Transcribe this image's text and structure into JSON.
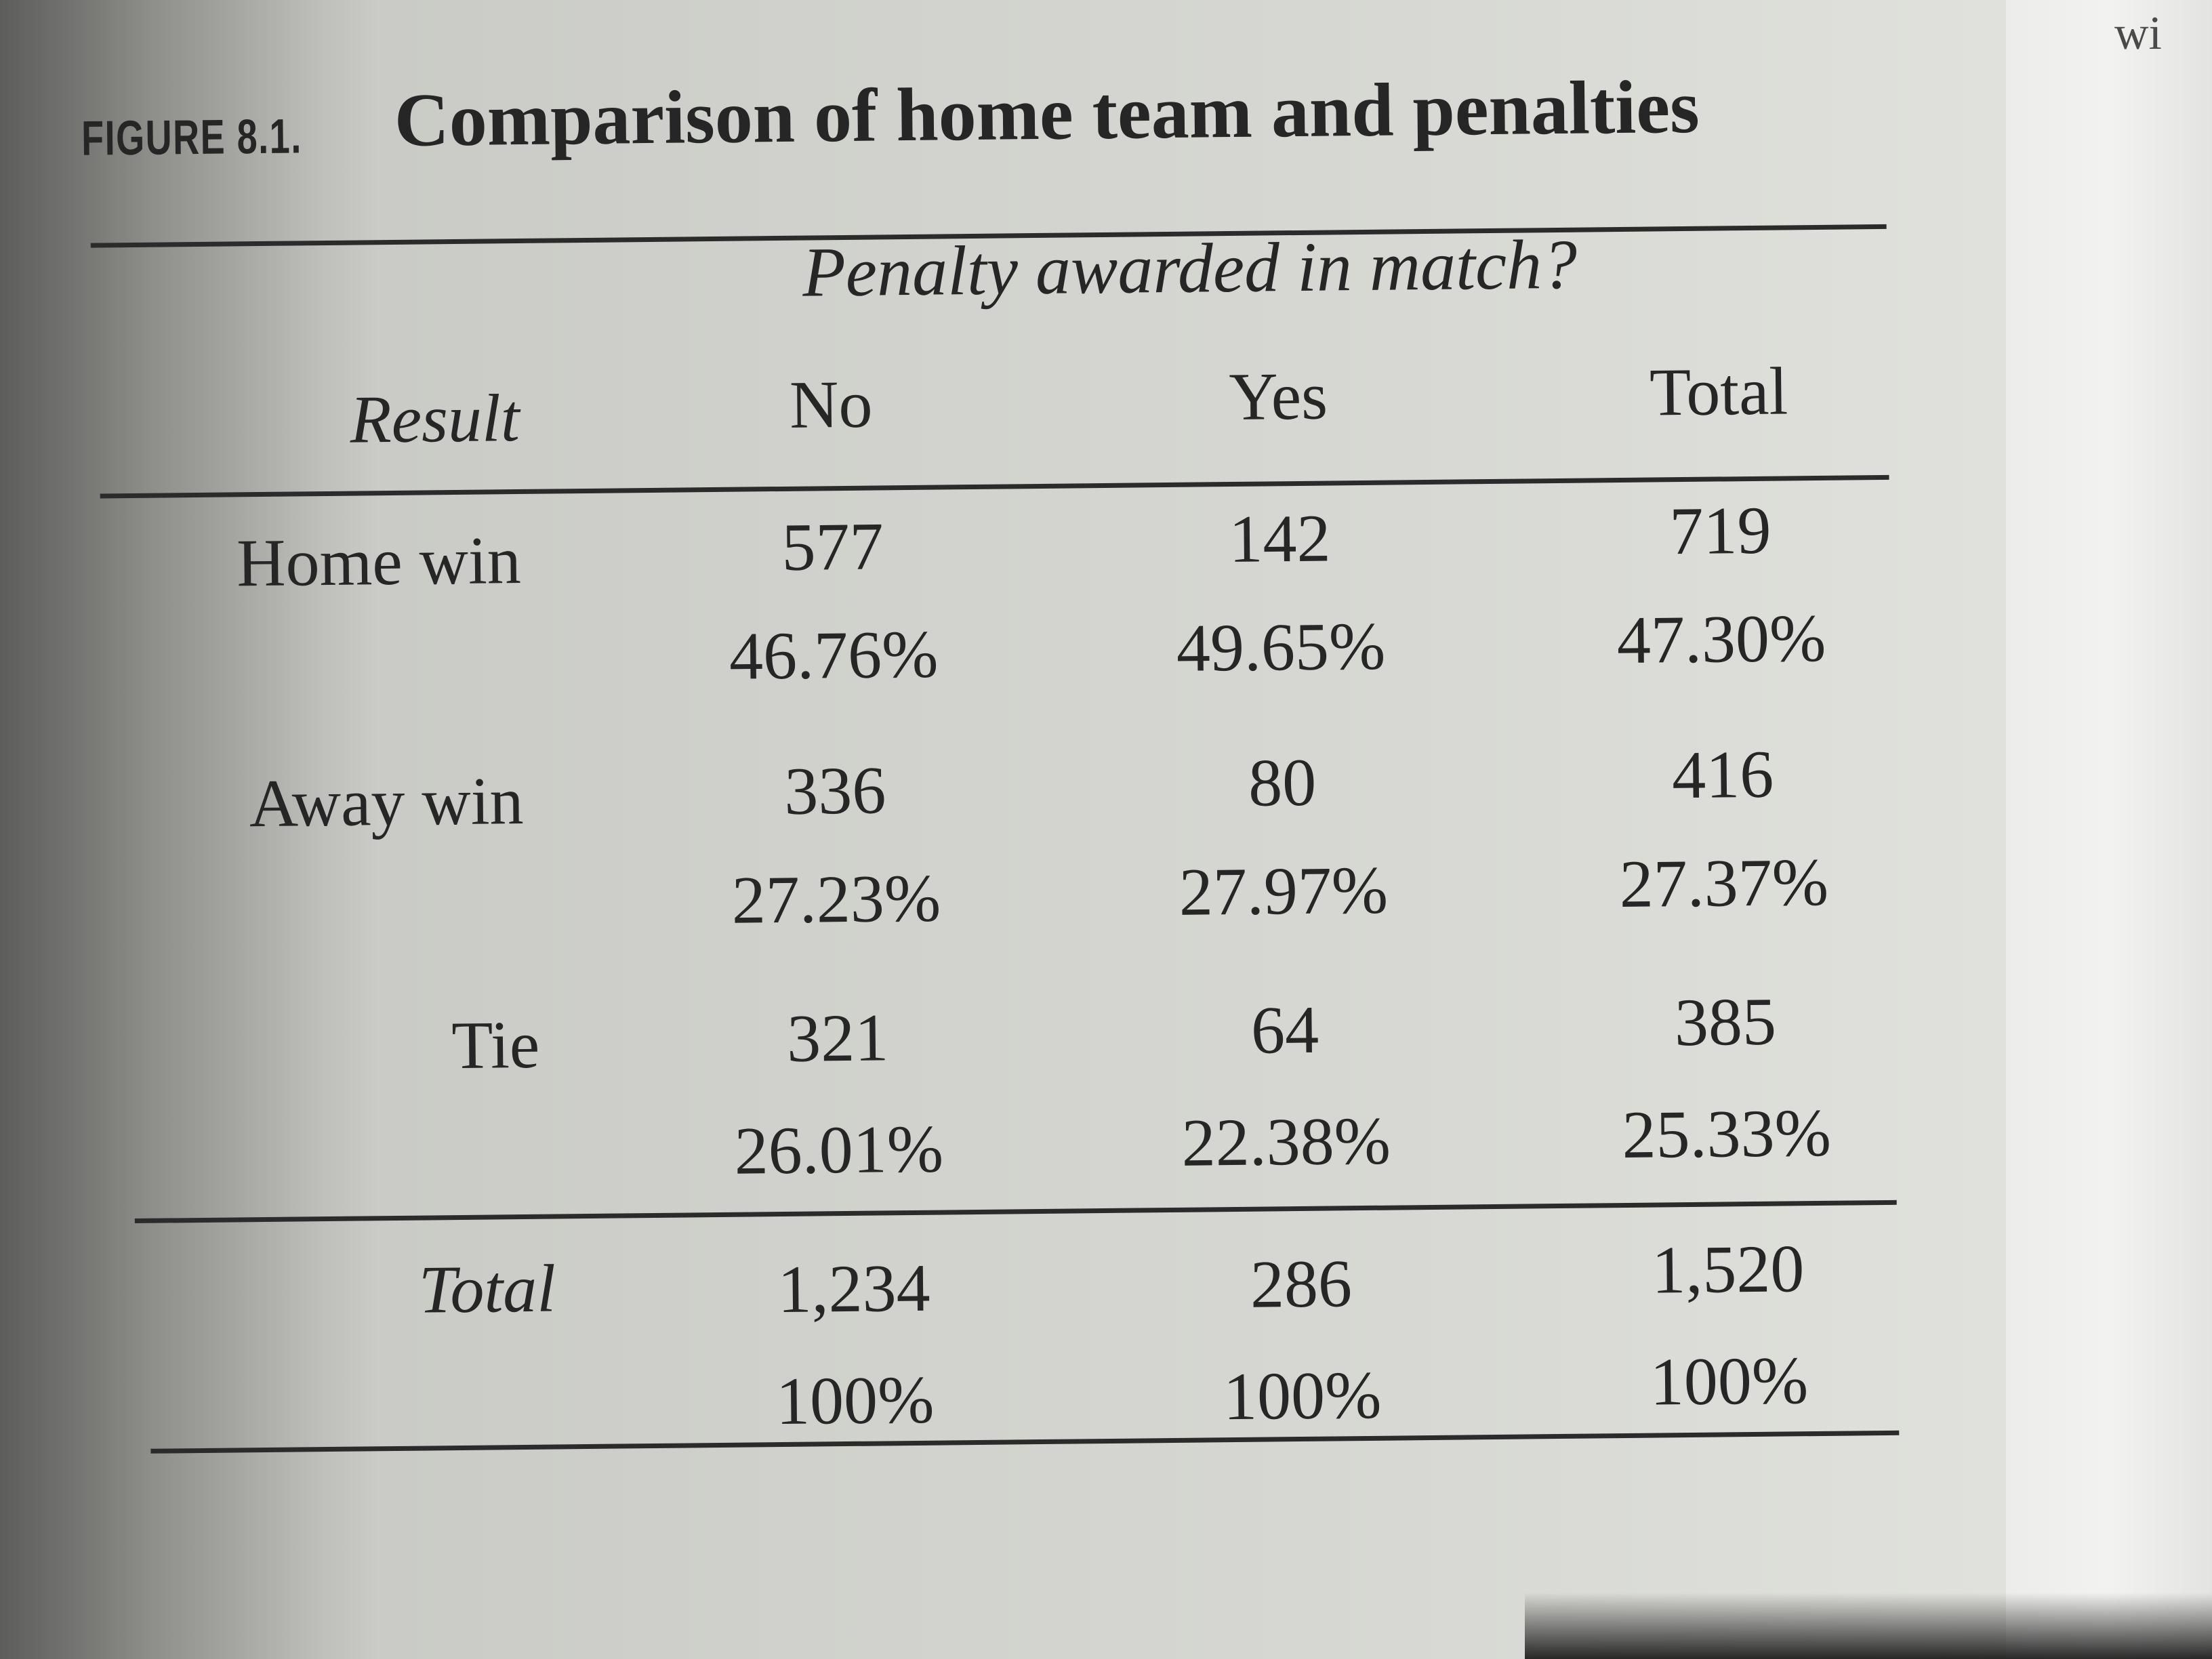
{
  "figure": {
    "label": "FIGURE 8.1.",
    "title": "Comparison of home team and penalties"
  },
  "table": {
    "group_header": "Penalty awarded in match?",
    "row_header": "Result",
    "columns": [
      "No",
      "Yes",
      "Total"
    ],
    "rows": [
      {
        "label": "Home win",
        "counts": [
          "577",
          "142",
          "719"
        ],
        "percents": [
          "46.76%",
          "49.65%",
          "47.30%"
        ]
      },
      {
        "label": "Away win",
        "counts": [
          "336",
          "80",
          "416"
        ],
        "percents": [
          "27.23%",
          "27.97%",
          "27.37%"
        ]
      },
      {
        "label": "Tie",
        "counts": [
          "321",
          "64",
          "385"
        ],
        "percents": [
          "26.01%",
          "22.38%",
          "25.33%"
        ]
      }
    ],
    "total": {
      "label": "Total",
      "counts": [
        "1,234",
        "286",
        "1,520"
      ],
      "percents": [
        "100%",
        "100%",
        "100%"
      ]
    }
  },
  "edge_text": "wi"
}
